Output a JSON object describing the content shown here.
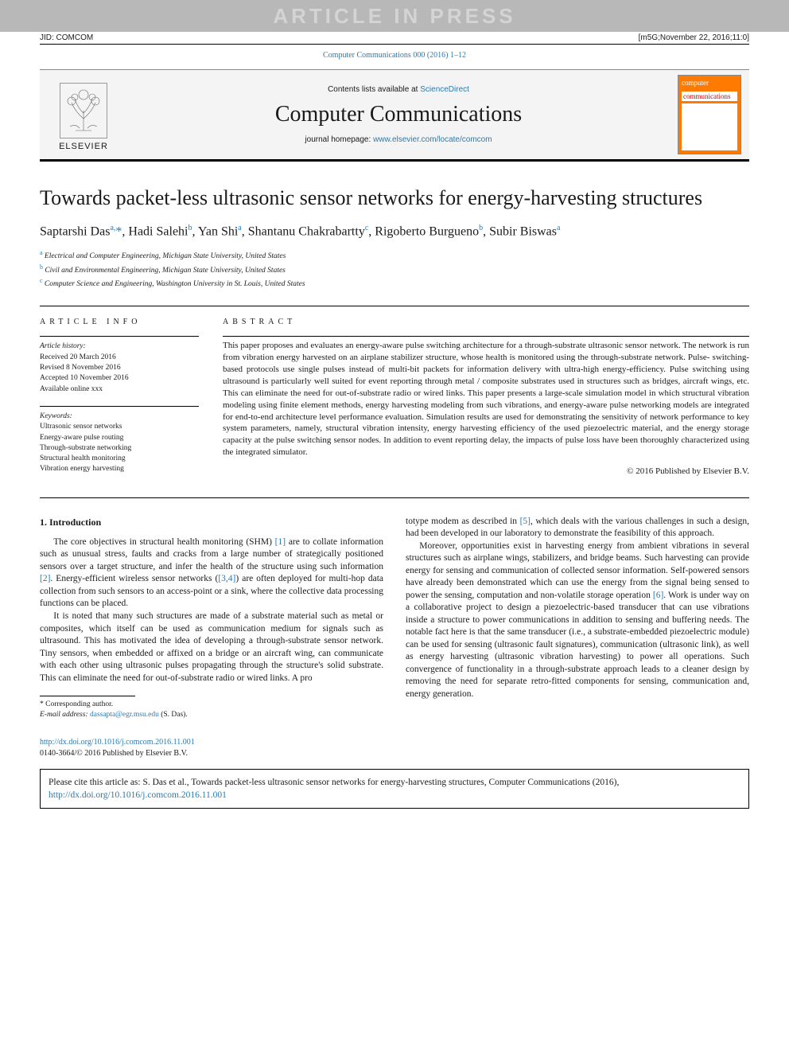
{
  "colors": {
    "link": "#2a7ab0",
    "cover_bg": "#ff7a00",
    "gray_bar": "#b8b8b8",
    "watermark_text": "#d4d4d4"
  },
  "header": {
    "watermark": "ARTICLE IN PRESS",
    "jid": "JID: COMCOM",
    "meta_right": "[m5G;November 22, 2016;11:0]",
    "citation_line": "Computer Communications 000 (2016) 1–12",
    "contents_prefix": "Contents lists available at ",
    "contents_link": "ScienceDirect",
    "journal_name": "Computer Communications",
    "homepage_prefix": "journal homepage: ",
    "homepage_url": "www.elsevier.com/locate/comcom",
    "publisher": "ELSEVIER",
    "cover_label_top": "computer",
    "cover_label_bottom": "communications"
  },
  "article": {
    "title": "Towards packet-less ultrasonic sensor networks for energy-harvesting structures",
    "authors_html": "Saptarshi Das<sup>a,</sup><span class='corr'>*</span>, Hadi Salehi<sup>b</sup>, Yan Shi<sup>a</sup>, Shantanu Chakrabartty<sup>c</sup>, Rigoberto Burgueno<sup>b</sup>, Subir Biswas<sup>a</sup>",
    "affiliations": [
      {
        "sup": "a",
        "text": "Electrical and Computer Engineering, Michigan State University, United States"
      },
      {
        "sup": "b",
        "text": "Civil and Environmental Engineering, Michigan State University, United States"
      },
      {
        "sup": "c",
        "text": "Computer Science and Engineering, Washington University in St. Louis, United States"
      }
    ]
  },
  "info": {
    "section_label": "article info",
    "history_label": "Article history:",
    "history": [
      "Received 20 March 2016",
      "Revised 8 November 2016",
      "Accepted 10 November 2016",
      "Available online xxx"
    ],
    "keywords_label": "Keywords:",
    "keywords": [
      "Ultrasonic sensor networks",
      "Energy-aware pulse routing",
      "Through-substrate networking",
      "Structural health monitoring",
      "Vibration energy harvesting"
    ]
  },
  "abstract": {
    "section_label": "abstract",
    "text": "This paper proposes and evaluates an energy-aware pulse switching architecture for a through-substrate ultrasonic sensor network. The network is run from vibration energy harvested on an airplane stabilizer structure, whose health is monitored using the through-substrate network. Pulse- switching-based protocols use single pulses instead of multi-bit packets for information delivery with ultra-high energy-efficiency. Pulse switching using ultrasound is particularly well suited for event reporting through metal / composite substrates used in structures such as bridges, aircraft wings, etc. This can eliminate the need for out-of-substrate radio or wired links. This paper presents a large-scale simulation model in which structural vibration modeling using finite element methods, energy harvesting modeling from such vibrations, and energy-aware pulse networking models are integrated for end-to-end architecture level performance evaluation. Simulation results are used for demonstrating the sensitivity of network performance to key system parameters, namely, structural vibration intensity, energy harvesting efficiency of the used piezoelectric material, and the energy storage capacity at the pulse switching sensor nodes. In addition to event reporting delay, the impacts of pulse loss have been thoroughly characterized using the integrated simulator.",
    "copyright": "© 2016 Published by Elsevier B.V."
  },
  "body": {
    "section_heading": "1. Introduction",
    "p1": "The core objectives in structural health monitoring (SHM) [1] are to collate information such as unusual stress, faults and cracks from a large number of strategically positioned sensors over a target structure, and infer the health of the structure using such information [2]. Energy-efficient wireless sensor networks ([3,4]) are often deployed for multi-hop data collection from such sensors to an access-point or a sink, where the collective data processing functions can be placed.",
    "p2": "It is noted that many such structures are made of a substrate material such as metal or composites, which itself can be used as communication medium for signals such as ultrasound. This has motivated the idea of developing a through-substrate sensor network. Tiny sensors, when embedded or affixed on a bridge or an aircraft wing, can communicate with each other using ultrasonic pulses propagating through the structure's solid substrate. This can eliminate the need for out-of-substrate radio or wired links. A pro",
    "p3_cont": "totype modem as described in [5], which deals with the various challenges in such a design, had been developed in our laboratory to demonstrate the feasibility of this approach.",
    "p4": "Moreover, opportunities exist in harvesting energy from ambient vibrations in several structures such as airplane wings, stabilizers, and bridge beams. Such harvesting can provide energy for sensing and communication of collected sensor information. Self-powered sensors have already been demonstrated which can use the energy from the signal being sensed to power the sensing, computation and non-volatile storage operation [6]. Work is under way on a collaborative project to design a piezoelectric-based transducer that can use vibrations inside a structure to power communications in addition to sensing and buffering needs. The notable fact here is that the same transducer (i.e., a substrate-embedded piezoelectric module) can be used for sensing (ultrasonic fault signatures), communication (ultrasonic link), as well as energy harvesting (ultrasonic vibration harvesting) to power all operations. Such convergence of functionality in a through-substrate approach leads to a cleaner design by removing the need for separate retro-fitted components for sensing, communication and, energy generation."
  },
  "footnote": {
    "corr_label": "* Corresponding author.",
    "email_label": "E-mail address: ",
    "email": "dassapta@egr.msu.edu",
    "email_suffix": " (S. Das)."
  },
  "doi": {
    "url": "http://dx.doi.org/10.1016/j.comcom.2016.11.001",
    "line2": "0140-3664/© 2016 Published by Elsevier B.V."
  },
  "citation_box": {
    "prefix": "Please cite this article as: S. Das et al., Towards packet-less ultrasonic sensor networks for energy-harvesting structures, Computer Communications (2016), ",
    "url": "http://dx.doi.org/10.1016/j.comcom.2016.11.001"
  }
}
